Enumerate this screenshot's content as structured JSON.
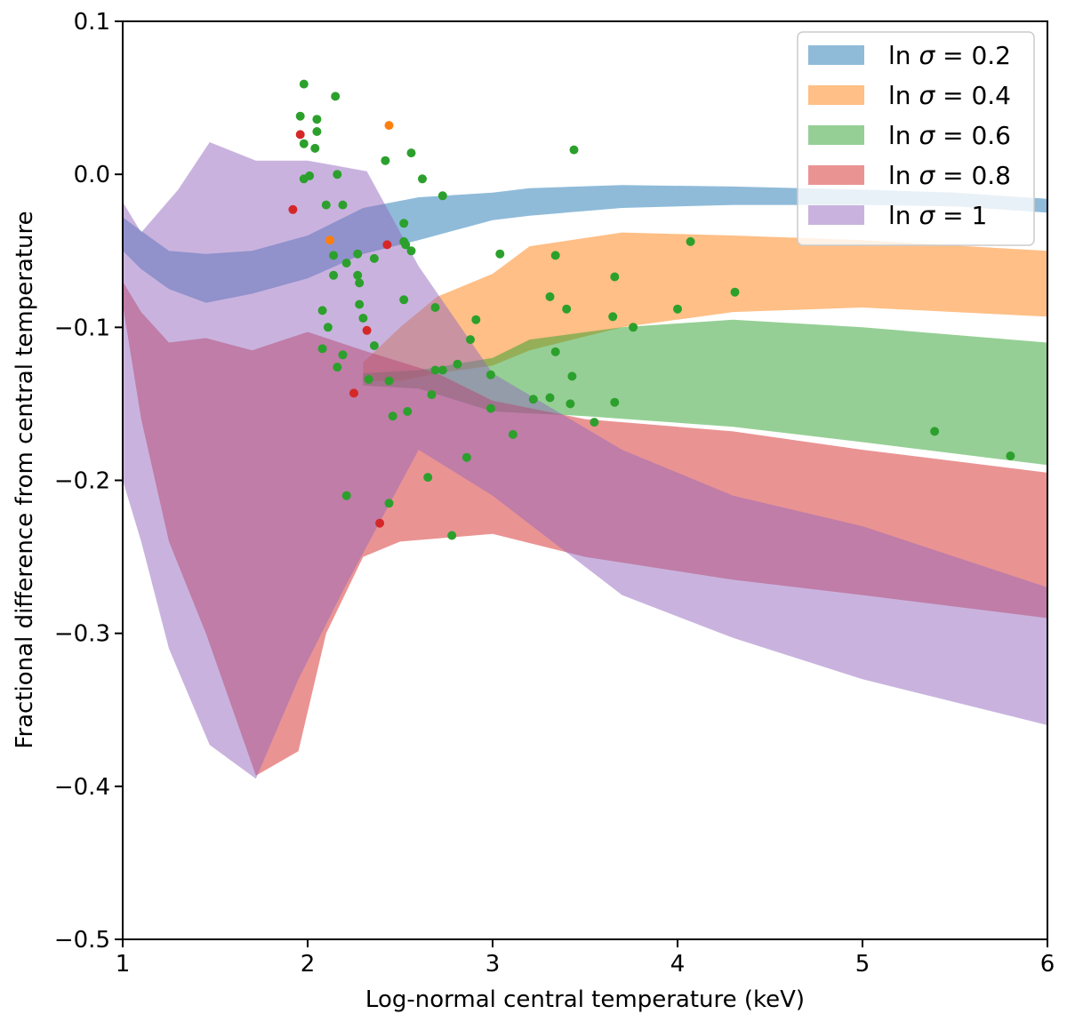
{
  "chart_data": {
    "type": "area",
    "title": "",
    "xlabel": "Log-normal central temperature (keV)",
    "ylabel": "Fractional difference from central temperature",
    "xlim": [
      1,
      6
    ],
    "ylim": [
      -0.5,
      0.1
    ],
    "xticks": [
      1,
      2,
      3,
      4,
      5,
      6
    ],
    "xtick_labels": [
      "1",
      "2",
      "3",
      "4",
      "5",
      "6"
    ],
    "yticks": [
      -0.5,
      -0.4,
      -0.3,
      -0.2,
      -0.1,
      0.0,
      0.1
    ],
    "ytick_labels": [
      "−0.5",
      "−0.4",
      "−0.3",
      "−0.2",
      "−0.1",
      "0.0",
      "0.1"
    ],
    "grid": false,
    "legend_position": "top-right",
    "series": [
      {
        "name": "ln σ = 0.2",
        "legend_prefix": "ln ",
        "legend_symbol": "σ",
        "legend_value": " = 0.2",
        "color": "#1f77b4",
        "upper": [
          [
            1.0,
            -0.028
          ],
          [
            1.1,
            -0.037
          ],
          [
            1.25,
            -0.05
          ],
          [
            1.45,
            -0.052
          ],
          [
            1.7,
            -0.05
          ],
          [
            2.0,
            -0.04
          ],
          [
            2.3,
            -0.022
          ],
          [
            2.6,
            -0.015
          ],
          [
            3.0,
            -0.012
          ],
          [
            3.2,
            -0.009
          ],
          [
            3.7,
            -0.007
          ],
          [
            4.3,
            -0.008
          ],
          [
            5.0,
            -0.01
          ],
          [
            5.5,
            -0.012
          ],
          [
            6.0,
            -0.016
          ]
        ],
        "lower": [
          [
            1.0,
            -0.05
          ],
          [
            1.1,
            -0.062
          ],
          [
            1.25,
            -0.075
          ],
          [
            1.45,
            -0.084
          ],
          [
            1.7,
            -0.078
          ],
          [
            2.0,
            -0.068
          ],
          [
            2.3,
            -0.052
          ],
          [
            2.6,
            -0.043
          ],
          [
            3.0,
            -0.03
          ],
          [
            3.2,
            -0.027
          ],
          [
            3.7,
            -0.022
          ],
          [
            4.3,
            -0.02
          ],
          [
            5.0,
            -0.02
          ],
          [
            5.5,
            -0.021
          ],
          [
            6.0,
            -0.025
          ]
        ]
      },
      {
        "name": "ln σ = 0.4",
        "legend_prefix": "ln ",
        "legend_symbol": "σ",
        "legend_value": " = 0.4",
        "color": "#ff7f0e",
        "upper": [
          [
            2.3,
            -0.123
          ],
          [
            2.5,
            -0.1
          ],
          [
            2.7,
            -0.08
          ],
          [
            3.0,
            -0.065
          ],
          [
            3.2,
            -0.047
          ],
          [
            3.7,
            -0.038
          ],
          [
            4.3,
            -0.04
          ],
          [
            5.0,
            -0.043
          ],
          [
            6.0,
            -0.05
          ]
        ],
        "lower": [
          [
            2.3,
            -0.135
          ],
          [
            2.5,
            -0.135
          ],
          [
            2.7,
            -0.13
          ],
          [
            3.0,
            -0.125
          ],
          [
            3.2,
            -0.115
          ],
          [
            3.7,
            -0.1
          ],
          [
            4.3,
            -0.09
          ],
          [
            5.0,
            -0.087
          ],
          [
            6.0,
            -0.093
          ]
        ]
      },
      {
        "name": "ln σ = 0.6",
        "legend_prefix": "ln ",
        "legend_symbol": "σ",
        "legend_value": " = 0.6",
        "color": "#2ca02c",
        "upper": [
          [
            2.3,
            -0.13
          ],
          [
            2.6,
            -0.128
          ],
          [
            3.0,
            -0.12
          ],
          [
            3.2,
            -0.108
          ],
          [
            3.7,
            -0.1
          ],
          [
            4.3,
            -0.095
          ],
          [
            5.0,
            -0.1
          ],
          [
            6.0,
            -0.11
          ]
        ],
        "lower": [
          [
            2.3,
            -0.138
          ],
          [
            2.6,
            -0.14
          ],
          [
            3.0,
            -0.155
          ],
          [
            3.5,
            -0.158
          ],
          [
            4.3,
            -0.165
          ],
          [
            5.0,
            -0.175
          ],
          [
            6.0,
            -0.19
          ]
        ]
      },
      {
        "name": "ln σ = 0.8",
        "legend_prefix": "ln ",
        "legend_symbol": "σ",
        "legend_value": " = 0.8",
        "color": "#d62728",
        "upper": [
          [
            1.0,
            -0.07
          ],
          [
            1.1,
            -0.09
          ],
          [
            1.25,
            -0.11
          ],
          [
            1.45,
            -0.107
          ],
          [
            1.7,
            -0.115
          ],
          [
            2.0,
            -0.103
          ],
          [
            2.3,
            -0.115
          ],
          [
            2.7,
            -0.13
          ],
          [
            3.0,
            -0.148
          ],
          [
            3.5,
            -0.16
          ],
          [
            4.3,
            -0.168
          ],
          [
            5.0,
            -0.18
          ],
          [
            6.0,
            -0.195
          ]
        ],
        "lower": [
          [
            1.0,
            -0.085
          ],
          [
            1.1,
            -0.16
          ],
          [
            1.25,
            -0.24
          ],
          [
            1.45,
            -0.3
          ],
          [
            1.72,
            -0.393
          ],
          [
            1.95,
            -0.377
          ],
          [
            2.1,
            -0.3
          ],
          [
            2.3,
            -0.25
          ],
          [
            2.5,
            -0.24
          ],
          [
            3.0,
            -0.235
          ],
          [
            3.5,
            -0.25
          ],
          [
            4.3,
            -0.265
          ],
          [
            5.0,
            -0.275
          ],
          [
            6.0,
            -0.29
          ]
        ]
      },
      {
        "name": "ln σ = 1",
        "legend_prefix": "ln ",
        "legend_symbol": "σ",
        "legend_value": " = 1",
        "color": "#9467bd",
        "upper": [
          [
            1.0,
            -0.018
          ],
          [
            1.1,
            -0.038
          ],
          [
            1.3,
            -0.01
          ],
          [
            1.47,
            0.021
          ],
          [
            1.72,
            0.009
          ],
          [
            2.0,
            0.009
          ],
          [
            2.32,
            0.002
          ],
          [
            2.6,
            -0.06
          ],
          [
            3.0,
            -0.13
          ],
          [
            3.7,
            -0.18
          ],
          [
            4.3,
            -0.21
          ],
          [
            5.0,
            -0.23
          ],
          [
            6.0,
            -0.27
          ]
        ],
        "lower": [
          [
            1.0,
            -0.2
          ],
          [
            1.1,
            -0.24
          ],
          [
            1.25,
            -0.31
          ],
          [
            1.47,
            -0.373
          ],
          [
            1.72,
            -0.395
          ],
          [
            1.95,
            -0.33
          ],
          [
            2.2,
            -0.27
          ],
          [
            2.6,
            -0.18
          ],
          [
            3.0,
            -0.21
          ],
          [
            3.7,
            -0.275
          ],
          [
            4.3,
            -0.303
          ],
          [
            5.0,
            -0.33
          ],
          [
            6.0,
            -0.36
          ]
        ]
      }
    ],
    "points": [
      {
        "x": 1.98,
        "y": 0.059,
        "color": "#2ca02c"
      },
      {
        "x": 2.15,
        "y": 0.051,
        "color": "#2ca02c"
      },
      {
        "x": 1.96,
        "y": 0.038,
        "color": "#2ca02c"
      },
      {
        "x": 2.05,
        "y": 0.036,
        "color": "#2ca02c"
      },
      {
        "x": 2.05,
        "y": 0.028,
        "color": "#2ca02c"
      },
      {
        "x": 1.98,
        "y": 0.02,
        "color": "#2ca02c"
      },
      {
        "x": 2.04,
        "y": 0.017,
        "color": "#2ca02c"
      },
      {
        "x": 2.56,
        "y": 0.014,
        "color": "#2ca02c"
      },
      {
        "x": 2.42,
        "y": 0.009,
        "color": "#2ca02c"
      },
      {
        "x": 3.44,
        "y": 0.016,
        "color": "#2ca02c"
      },
      {
        "x": 2.16,
        "y": 0.0,
        "color": "#2ca02c"
      },
      {
        "x": 2.01,
        "y": -0.001,
        "color": "#2ca02c"
      },
      {
        "x": 1.98,
        "y": -0.003,
        "color": "#2ca02c"
      },
      {
        "x": 2.62,
        "y": -0.003,
        "color": "#2ca02c"
      },
      {
        "x": 2.73,
        "y": -0.014,
        "color": "#2ca02c"
      },
      {
        "x": 2.1,
        "y": -0.02,
        "color": "#2ca02c"
      },
      {
        "x": 2.19,
        "y": -0.02,
        "color": "#2ca02c"
      },
      {
        "x": 2.52,
        "y": -0.032,
        "color": "#2ca02c"
      },
      {
        "x": 2.52,
        "y": -0.044,
        "color": "#2ca02c"
      },
      {
        "x": 2.53,
        "y": -0.046,
        "color": "#2ca02c"
      },
      {
        "x": 2.56,
        "y": -0.05,
        "color": "#2ca02c"
      },
      {
        "x": 2.27,
        "y": -0.052,
        "color": "#2ca02c"
      },
      {
        "x": 2.14,
        "y": -0.053,
        "color": "#2ca02c"
      },
      {
        "x": 2.36,
        "y": -0.055,
        "color": "#2ca02c"
      },
      {
        "x": 2.21,
        "y": -0.058,
        "color": "#2ca02c"
      },
      {
        "x": 2.14,
        "y": -0.066,
        "color": "#2ca02c"
      },
      {
        "x": 2.27,
        "y": -0.066,
        "color": "#2ca02c"
      },
      {
        "x": 2.28,
        "y": -0.071,
        "color": "#2ca02c"
      },
      {
        "x": 3.04,
        "y": -0.052,
        "color": "#2ca02c"
      },
      {
        "x": 3.34,
        "y": -0.053,
        "color": "#2ca02c"
      },
      {
        "x": 4.07,
        "y": -0.044,
        "color": "#2ca02c"
      },
      {
        "x": 3.66,
        "y": -0.067,
        "color": "#2ca02c"
      },
      {
        "x": 4.31,
        "y": -0.077,
        "color": "#2ca02c"
      },
      {
        "x": 3.31,
        "y": -0.08,
        "color": "#2ca02c"
      },
      {
        "x": 2.52,
        "y": -0.082,
        "color": "#2ca02c"
      },
      {
        "x": 2.28,
        "y": -0.085,
        "color": "#2ca02c"
      },
      {
        "x": 2.69,
        "y": -0.087,
        "color": "#2ca02c"
      },
      {
        "x": 2.08,
        "y": -0.089,
        "color": "#2ca02c"
      },
      {
        "x": 3.4,
        "y": -0.088,
        "color": "#2ca02c"
      },
      {
        "x": 4.0,
        "y": -0.088,
        "color": "#2ca02c"
      },
      {
        "x": 3.65,
        "y": -0.093,
        "color": "#2ca02c"
      },
      {
        "x": 2.3,
        "y": -0.094,
        "color": "#2ca02c"
      },
      {
        "x": 2.91,
        "y": -0.095,
        "color": "#2ca02c"
      },
      {
        "x": 2.11,
        "y": -0.1,
        "color": "#2ca02c"
      },
      {
        "x": 3.76,
        "y": -0.1,
        "color": "#2ca02c"
      },
      {
        "x": 2.88,
        "y": -0.108,
        "color": "#2ca02c"
      },
      {
        "x": 2.36,
        "y": -0.112,
        "color": "#2ca02c"
      },
      {
        "x": 2.08,
        "y": -0.114,
        "color": "#2ca02c"
      },
      {
        "x": 2.19,
        "y": -0.118,
        "color": "#2ca02c"
      },
      {
        "x": 3.34,
        "y": -0.116,
        "color": "#2ca02c"
      },
      {
        "x": 2.81,
        "y": -0.124,
        "color": "#2ca02c"
      },
      {
        "x": 2.16,
        "y": -0.126,
        "color": "#2ca02c"
      },
      {
        "x": 2.69,
        "y": -0.128,
        "color": "#2ca02c"
      },
      {
        "x": 2.73,
        "y": -0.128,
        "color": "#2ca02c"
      },
      {
        "x": 2.99,
        "y": -0.131,
        "color": "#2ca02c"
      },
      {
        "x": 3.43,
        "y": -0.132,
        "color": "#2ca02c"
      },
      {
        "x": 2.33,
        "y": -0.134,
        "color": "#2ca02c"
      },
      {
        "x": 2.44,
        "y": -0.135,
        "color": "#2ca02c"
      },
      {
        "x": 2.67,
        "y": -0.144,
        "color": "#2ca02c"
      },
      {
        "x": 3.22,
        "y": -0.147,
        "color": "#2ca02c"
      },
      {
        "x": 3.31,
        "y": -0.146,
        "color": "#2ca02c"
      },
      {
        "x": 3.66,
        "y": -0.149,
        "color": "#2ca02c"
      },
      {
        "x": 3.42,
        "y": -0.15,
        "color": "#2ca02c"
      },
      {
        "x": 2.99,
        "y": -0.153,
        "color": "#2ca02c"
      },
      {
        "x": 2.54,
        "y": -0.155,
        "color": "#2ca02c"
      },
      {
        "x": 2.46,
        "y": -0.158,
        "color": "#2ca02c"
      },
      {
        "x": 3.55,
        "y": -0.162,
        "color": "#2ca02c"
      },
      {
        "x": 3.11,
        "y": -0.17,
        "color": "#2ca02c"
      },
      {
        "x": 5.39,
        "y": -0.168,
        "color": "#2ca02c"
      },
      {
        "x": 5.8,
        "y": -0.184,
        "color": "#2ca02c"
      },
      {
        "x": 2.86,
        "y": -0.185,
        "color": "#2ca02c"
      },
      {
        "x": 2.65,
        "y": -0.198,
        "color": "#2ca02c"
      },
      {
        "x": 2.21,
        "y": -0.21,
        "color": "#2ca02c"
      },
      {
        "x": 2.44,
        "y": -0.215,
        "color": "#2ca02c"
      },
      {
        "x": 2.78,
        "y": -0.236,
        "color": "#2ca02c"
      },
      {
        "x": 2.44,
        "y": 0.032,
        "color": "#ff7f0e"
      },
      {
        "x": 2.12,
        "y": -0.043,
        "color": "#ff7f0e"
      },
      {
        "x": 1.96,
        "y": 0.026,
        "color": "#d62728"
      },
      {
        "x": 1.92,
        "y": -0.023,
        "color": "#d62728"
      },
      {
        "x": 2.43,
        "y": -0.046,
        "color": "#d62728"
      },
      {
        "x": 2.32,
        "y": -0.102,
        "color": "#d62728"
      },
      {
        "x": 2.25,
        "y": -0.143,
        "color": "#d62728"
      },
      {
        "x": 2.39,
        "y": -0.228,
        "color": "#d62728"
      }
    ]
  }
}
